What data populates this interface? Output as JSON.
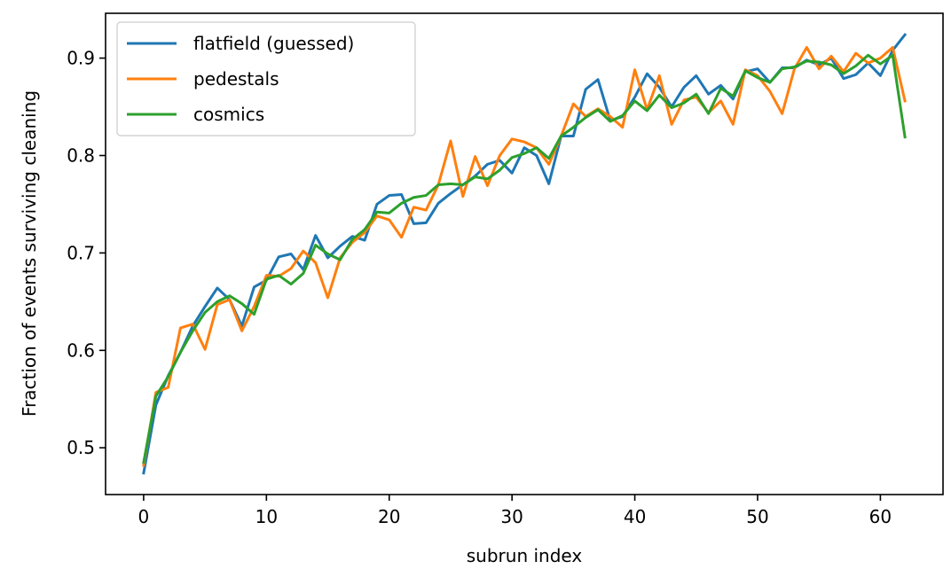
{
  "chart_data": {
    "type": "line",
    "title": "",
    "xlabel": "subrun index",
    "ylabel": "Fraction of events surviving cleaning",
    "xlim": [
      -3.1,
      65.1
    ],
    "ylim": [
      0.452,
      0.946
    ],
    "xticks": [
      0,
      10,
      20,
      30,
      40,
      50,
      60
    ],
    "yticks": [
      0.5,
      0.6,
      0.7,
      0.8,
      0.9
    ],
    "ytick_labels": [
      "0.5",
      "0.6",
      "0.7",
      "0.8",
      "0.9"
    ],
    "grid": false,
    "legend_position": "top-left",
    "series": [
      {
        "name": "flatfield (guessed)",
        "color": "#1f77b4",
        "values": [
          0.474,
          0.544,
          0.574,
          0.598,
          0.625,
          0.645,
          0.664,
          0.652,
          0.625,
          0.665,
          0.672,
          0.696,
          0.699,
          0.683,
          0.718,
          0.695,
          0.707,
          0.717,
          0.713,
          0.75,
          0.759,
          0.76,
          0.73,
          0.731,
          0.751,
          0.761,
          0.77,
          0.779,
          0.791,
          0.795,
          0.782,
          0.808,
          0.8,
          0.771,
          0.82,
          0.82,
          0.868,
          0.878,
          0.836,
          0.84,
          0.86,
          0.884,
          0.87,
          0.85,
          0.87,
          0.882,
          0.863,
          0.872,
          0.858,
          0.886,
          0.889,
          0.875,
          0.89,
          0.89,
          0.898,
          0.893,
          0.9,
          0.879,
          0.883,
          0.895,
          0.882,
          0.908,
          0.924
        ]
      },
      {
        "name": "pedestals",
        "color": "#ff7f0e",
        "values": [
          0.482,
          0.557,
          0.562,
          0.623,
          0.627,
          0.601,
          0.647,
          0.652,
          0.62,
          0.645,
          0.677,
          0.676,
          0.684,
          0.702,
          0.69,
          0.654,
          0.695,
          0.711,
          0.721,
          0.738,
          0.734,
          0.716,
          0.747,
          0.744,
          0.77,
          0.815,
          0.758,
          0.799,
          0.769,
          0.8,
          0.817,
          0.814,
          0.808,
          0.791,
          0.82,
          0.853,
          0.84,
          0.848,
          0.84,
          0.829,
          0.888,
          0.847,
          0.882,
          0.832,
          0.857,
          0.86,
          0.844,
          0.856,
          0.832,
          0.888,
          0.882,
          0.866,
          0.843,
          0.889,
          0.911,
          0.889,
          0.902,
          0.886,
          0.905,
          0.895,
          0.9,
          0.911,
          0.856
        ]
      },
      {
        "name": "cosmics",
        "color": "#2ca02c",
        "values": [
          0.485,
          0.553,
          0.573,
          0.598,
          0.62,
          0.639,
          0.65,
          0.656,
          0.648,
          0.637,
          0.673,
          0.677,
          0.668,
          0.679,
          0.708,
          0.699,
          0.693,
          0.714,
          0.724,
          0.742,
          0.741,
          0.751,
          0.757,
          0.759,
          0.77,
          0.771,
          0.77,
          0.778,
          0.776,
          0.785,
          0.798,
          0.802,
          0.808,
          0.797,
          0.82,
          0.829,
          0.839,
          0.847,
          0.835,
          0.841,
          0.856,
          0.846,
          0.862,
          0.849,
          0.854,
          0.863,
          0.843,
          0.869,
          0.861,
          0.887,
          0.88,
          0.875,
          0.889,
          0.891,
          0.897,
          0.896,
          0.893,
          0.884,
          0.892,
          0.903,
          0.894,
          0.903,
          0.819
        ]
      }
    ]
  }
}
